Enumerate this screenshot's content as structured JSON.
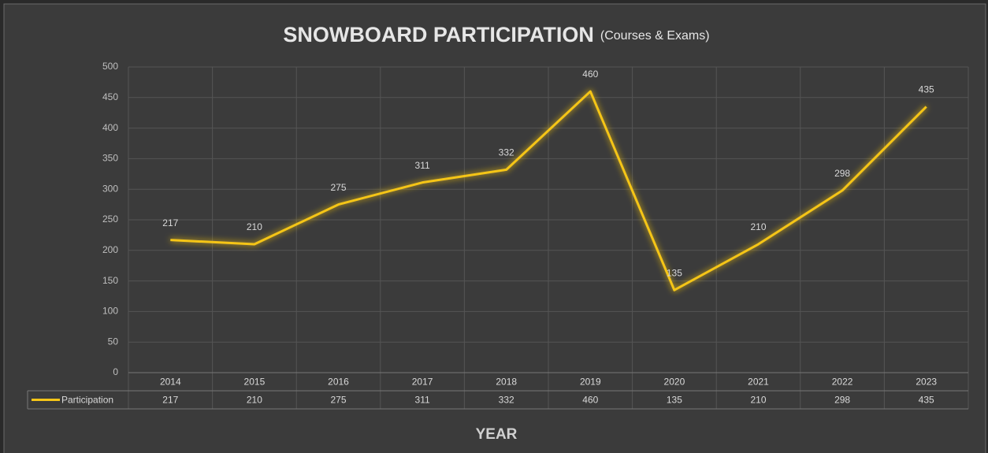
{
  "chart_data": {
    "type": "line",
    "title": "SNOWBOARD PARTICIPATION",
    "subtitle": "(Courses & Exams)",
    "x_label": "YEAR",
    "categories": [
      "2014",
      "2015",
      "2016",
      "2017",
      "2018",
      "2019",
      "2020",
      "2021",
      "2022",
      "2023"
    ],
    "series": [
      {
        "name": "Participation",
        "color": "#f5c518",
        "values": [
          217,
          210,
          275,
          311,
          332,
          460,
          135,
          210,
          298,
          435
        ]
      }
    ],
    "ylim": [
      0,
      500
    ],
    "yticks": [
      0,
      50,
      100,
      150,
      200,
      250,
      300,
      350,
      400,
      450,
      500
    ],
    "grid": true
  }
}
